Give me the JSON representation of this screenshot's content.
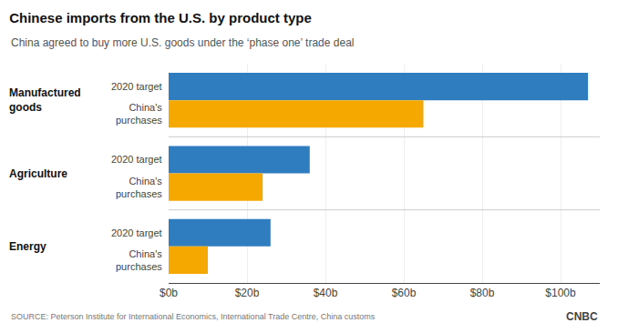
{
  "chart_data": {
    "type": "bar",
    "orientation": "horizontal",
    "title": "Chinese imports from the U.S. by product type",
    "subtitle": "China agreed to buy more U.S. goods under the ‘phase one’ trade deal",
    "source": "SOURCE: Peterson Institute for International Economics, International Trade Centre, China customs",
    "annotations": [
      "CNBC"
    ],
    "categories": [
      "Manufactured\ngoods",
      "Agriculture",
      "Energy"
    ],
    "series": [
      {
        "name": "2020 target",
        "color": "#2F7DBF",
        "values": [
          107,
          36,
          26
        ]
      },
      {
        "name": "China's\npurchases",
        "color": "#F5A800",
        "values": [
          65,
          24,
          10
        ]
      }
    ],
    "xlim": [
      0,
      110
    ],
    "xticks": [
      {
        "value": 0,
        "label": "$0b"
      },
      {
        "value": 20,
        "label": "$20b"
      },
      {
        "value": 40,
        "label": "$40b"
      },
      {
        "value": 60,
        "label": "$60b"
      },
      {
        "value": 80,
        "label": "$80b"
      },
      {
        "value": 100,
        "label": "$100b"
      }
    ],
    "grid": true
  }
}
